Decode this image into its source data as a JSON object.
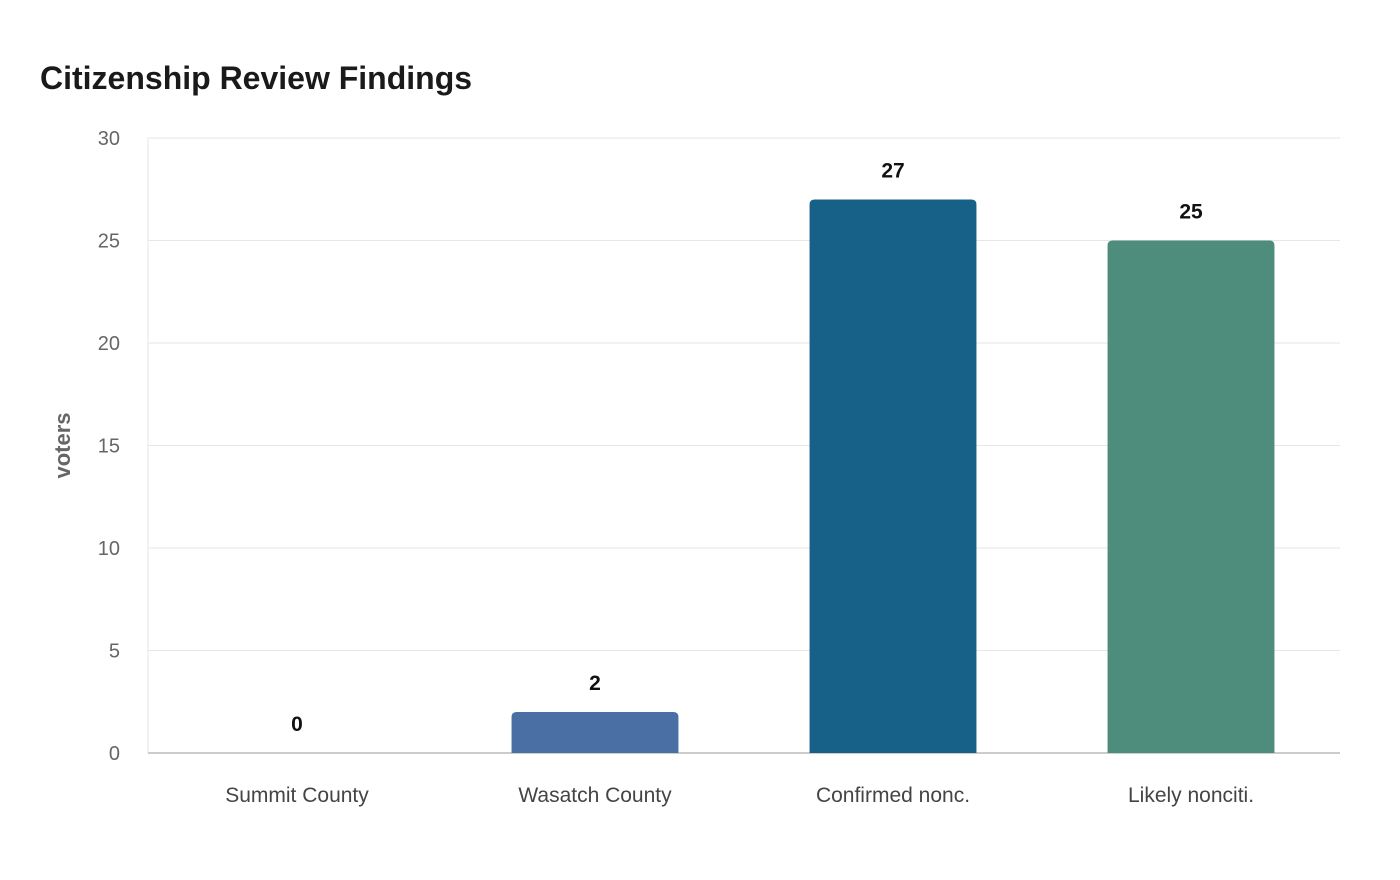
{
  "chart_data": {
    "type": "bar",
    "title": "Citizenship Review Findings",
    "xlabel": "",
    "ylabel": "voters",
    "categories": [
      "Summit County",
      "Wasatch County",
      "Confirmed nonc.",
      "Likely nonciti."
    ],
    "values": [
      0,
      2,
      27,
      25
    ],
    "value_labels": [
      "0",
      "2",
      "27",
      "25"
    ],
    "colors": [
      "#4a6fa5",
      "#4a6fa5",
      "#176087",
      "#4e8c7b"
    ],
    "ylim": [
      0,
      30
    ],
    "yticks": [
      0,
      5,
      10,
      15,
      20,
      25,
      30
    ],
    "ytick_labels": [
      "0",
      "5",
      "10",
      "15",
      "20",
      "25",
      "30"
    ],
    "grid": true,
    "legend": "none"
  }
}
